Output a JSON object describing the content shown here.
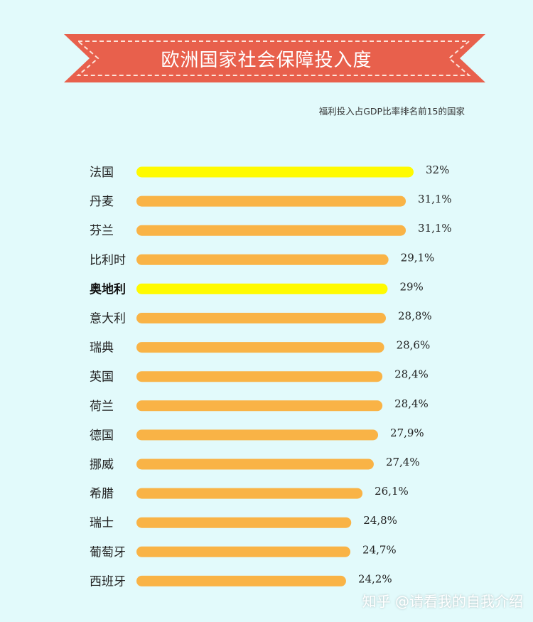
{
  "banner": {
    "title": "欧洲国家社会保障投入度"
  },
  "subtitle": "福利投入占GDP比率排名前15的国家",
  "watermark": "知乎 @请看我的自我介绍",
  "colors": {
    "background": "#e2fafb",
    "banner": "#e8604c",
    "banner_dash": "#fde2d8",
    "bar_default": "#f9b346",
    "bar_highlight": "#fffa00"
  },
  "chart_data": {
    "type": "bar",
    "orientation": "horizontal",
    "title": "欧洲国家社会保障投入度",
    "subtitle": "福利投入占GDP比率排名前15的国家",
    "xlim": [
      0,
      32
    ],
    "categories": [
      "法国",
      "丹麦",
      "芬兰",
      "比利时",
      "奥地利",
      "意大利",
      "瑞典",
      "英国",
      "荷兰",
      "德国",
      "挪威",
      "希腊",
      "瑞士",
      "葡萄牙",
      "西班牙"
    ],
    "values": [
      32,
      31.1,
      31.1,
      29.1,
      29,
      28.8,
      28.6,
      28.4,
      28.4,
      27.9,
      27.4,
      26.1,
      24.8,
      24.7,
      24.2
    ],
    "labels": [
      "32%",
      "31,1%",
      "31,1%",
      "29,1%",
      "29%",
      "28,8%",
      "28,6%",
      "28,4%",
      "28,4%",
      "27,9%",
      "27,4%",
      "26,1%",
      "24,8%",
      "24,7%",
      "24,2%"
    ],
    "highlighted": [
      "法国",
      "奥地利"
    ],
    "bold": [
      "奥地利"
    ]
  }
}
